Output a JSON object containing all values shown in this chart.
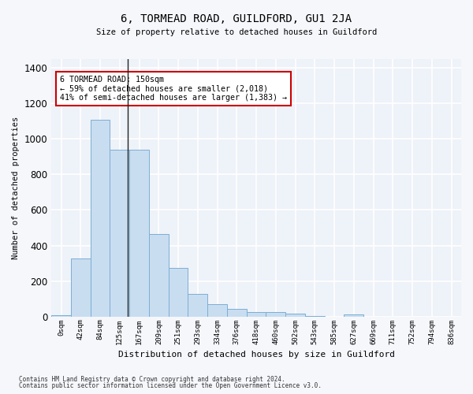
{
  "title": "6, TORMEAD ROAD, GUILDFORD, GU1 2JA",
  "subtitle": "Size of property relative to detached houses in Guildford",
  "xlabel": "Distribution of detached houses by size in Guildford",
  "ylabel": "Number of detached properties",
  "bar_color": "#c9ddf0",
  "bar_edge_color": "#7aafd4",
  "background_color": "#eef2f9",
  "grid_color": "#ffffff",
  "fig_background": "#f5f7fb",
  "categories": [
    "0sqm",
    "42sqm",
    "84sqm",
    "125sqm",
    "167sqm",
    "209sqm",
    "251sqm",
    "293sqm",
    "334sqm",
    "376sqm",
    "418sqm",
    "460sqm",
    "502sqm",
    "543sqm",
    "585sqm",
    "627sqm",
    "669sqm",
    "711sqm",
    "752sqm",
    "794sqm",
    "836sqm"
  ],
  "values": [
    8,
    325,
    1110,
    940,
    940,
    465,
    275,
    125,
    70,
    42,
    25,
    25,
    18,
    5,
    0,
    12,
    0,
    0,
    0,
    0,
    0
  ],
  "ylim": [
    0,
    1450
  ],
  "yticks": [
    0,
    200,
    400,
    600,
    800,
    1000,
    1200,
    1400
  ],
  "annotation_text": "6 TORMEAD ROAD: 150sqm\n← 59% of detached houses are smaller (2,018)\n41% of semi-detached houses are larger (1,383) →",
  "vline_x": 3.4,
  "footer_line1": "Contains HM Land Registry data © Crown copyright and database right 2024.",
  "footer_line2": "Contains public sector information licensed under the Open Government Licence v3.0."
}
